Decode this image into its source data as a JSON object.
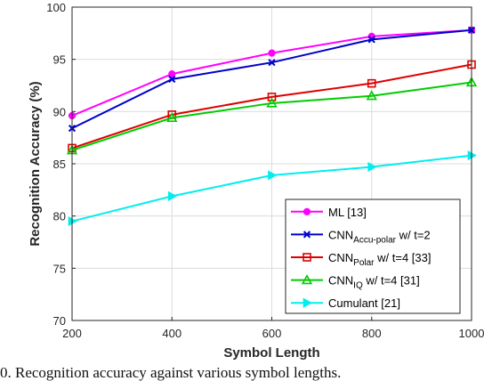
{
  "chart_data": {
    "type": "line",
    "xlabel": "Symbol Length",
    "ylabel": "Recognition Accuracy (%)",
    "xlim": [
      200,
      1000
    ],
    "ylim": [
      70,
      100
    ],
    "x": [
      200,
      400,
      600,
      800,
      1000
    ],
    "x_ticks": [
      "200",
      "400",
      "600",
      "800",
      "1000"
    ],
    "y_ticks": [
      "70",
      "75",
      "80",
      "85",
      "90",
      "95",
      "100"
    ],
    "grid": true,
    "legend_position": "bottom-right",
    "series": [
      {
        "name": "ML [13]",
        "color": "#ff00ff",
        "marker": "circle",
        "values": [
          89.6,
          93.6,
          95.6,
          97.2,
          97.8
        ]
      },
      {
        "name": "CNN",
        "sub": "Accu-polar",
        "suffix": " w/ t=2",
        "color": "#0000cc",
        "marker": "x",
        "values": [
          88.4,
          93.1,
          94.7,
          96.9,
          97.8
        ]
      },
      {
        "name": "CNN",
        "sub": "Polar",
        "suffix": " w/ t=4 [33]",
        "color": "#dd0000",
        "marker": "square",
        "values": [
          86.5,
          89.7,
          91.4,
          92.7,
          94.5
        ]
      },
      {
        "name": "CNN",
        "sub": "IQ",
        "suffix": " w/ t=4 [31]",
        "color": "#00cc00",
        "marker": "triangle-up",
        "values": [
          86.3,
          89.4,
          90.8,
          91.5,
          92.8
        ]
      },
      {
        "name": "Cumulant [21]",
        "color": "#00eeee",
        "marker": "triangle-right",
        "values": [
          79.5,
          81.9,
          83.9,
          84.7,
          85.8
        ]
      }
    ]
  },
  "caption": "0. Recognition accuracy against various symbol lengths."
}
